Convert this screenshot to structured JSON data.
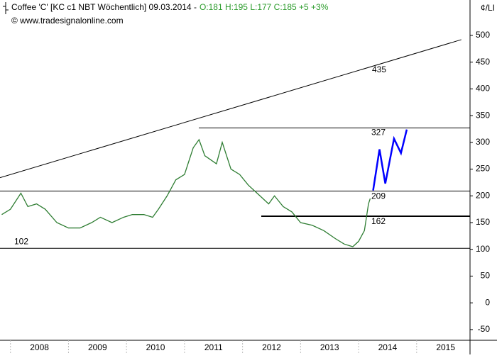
{
  "chart_data": {
    "type": "line",
    "title": "Coffee 'C' [KC c1 NBT  Wöchentlich] 09.03.2014 -",
    "quote": "O:181 H:195 L:177 C:185 +5 +3%",
    "source": "© www.tradesignalonline.com",
    "unit": "¢/LI",
    "xlim": [
      2007.82,
      2015.92
    ],
    "xticks": [
      2008,
      2009,
      2010,
      2011,
      2012,
      2013,
      2014,
      2015
    ],
    "ylim": [
      -70,
      537
    ],
    "yticks": [
      -50,
      0,
      50,
      100,
      150,
      200,
      250,
      300,
      350,
      400,
      450,
      500
    ],
    "series": [
      {
        "color": "#2e7d32",
        "x": [
          2007.85,
          2008.0,
          2008.18,
          2008.3,
          2008.45,
          2008.6,
          2008.8,
          2009.0,
          2009.2,
          2009.4,
          2009.55,
          2009.75,
          2009.95,
          2010.1,
          2010.3,
          2010.45,
          2010.55,
          2010.7,
          2010.85,
          2011.0,
          2011.15,
          2011.25,
          2011.35,
          2011.55,
          2011.65,
          2011.8,
          2011.95,
          2012.1,
          2012.3,
          2012.45,
          2012.55,
          2012.7,
          2012.85,
          2013.0,
          2013.2,
          2013.4,
          2013.6,
          2013.75,
          2013.9,
          2014.0,
          2014.1,
          2014.17,
          2014.2
        ],
        "values": [
          165,
          175,
          205,
          180,
          185,
          175,
          150,
          140,
          140,
          150,
          160,
          150,
          160,
          165,
          165,
          160,
          175,
          200,
          230,
          240,
          290,
          305,
          275,
          260,
          300,
          250,
          240,
          220,
          200,
          185,
          200,
          180,
          170,
          150,
          145,
          135,
          120,
          110,
          105,
          115,
          135,
          185,
          195
        ]
      },
      {
        "color": "#0000ff",
        "x": [
          2014.25,
          2014.36,
          2014.46,
          2014.61,
          2014.73,
          2014.83
        ],
        "values": [
          210,
          287,
          223,
          307,
          280,
          324
        ]
      }
    ],
    "levels": [
      327,
      209,
      162,
      102
    ],
    "trendline": {
      "x": [
        2007.82,
        2015.77
      ],
      "values": [
        234,
        492
      ],
      "label": 435
    }
  }
}
